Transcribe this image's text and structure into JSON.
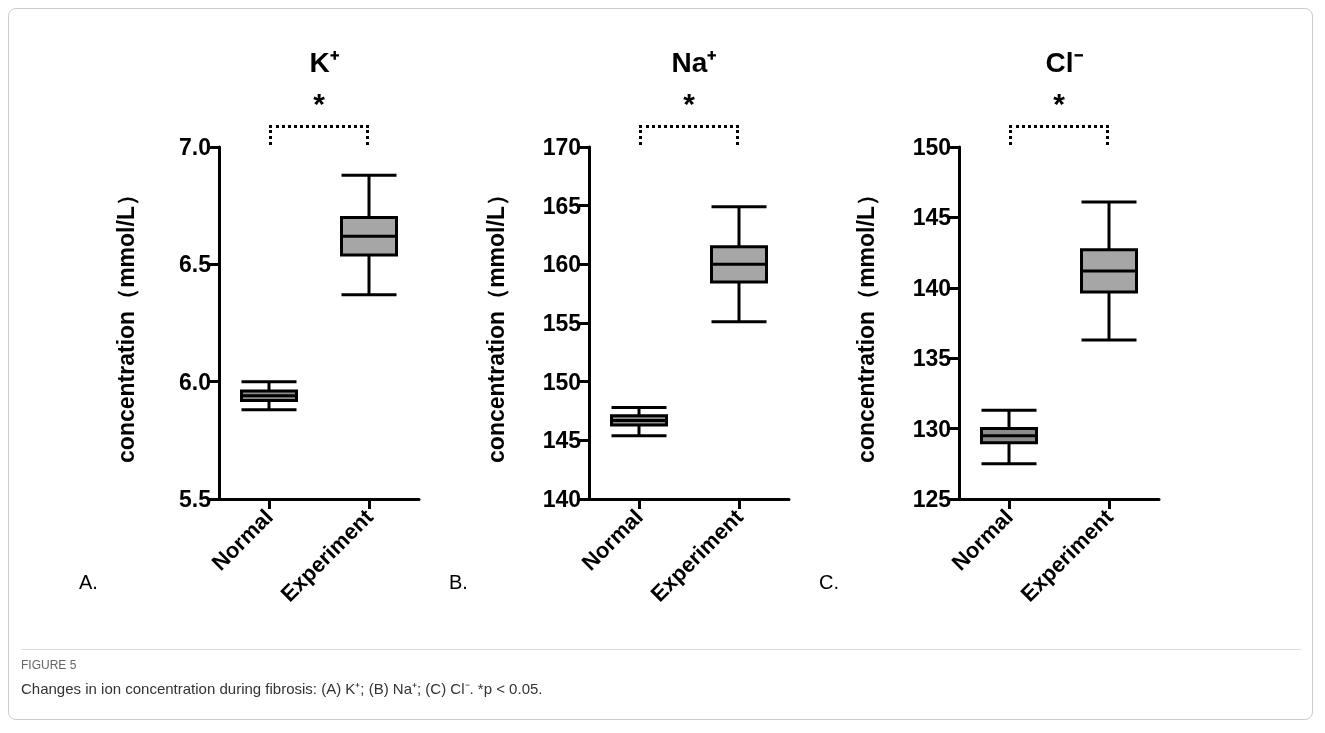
{
  "chart_data": [
    {
      "type": "box",
      "title": "K⁺",
      "ylabel": "concentration（mmol/L）",
      "categories": [
        "Normal",
        "Experiment"
      ],
      "colors": [
        "#8c8c8c",
        "#a6a6a6"
      ],
      "boxes": [
        {
          "low": 5.88,
          "q1": 5.92,
          "median": 5.94,
          "q3": 5.96,
          "high": 6.0
        },
        {
          "low": 6.37,
          "q1": 6.54,
          "median": 6.62,
          "q3": 6.7,
          "high": 6.88
        }
      ],
      "ylim": [
        5.5,
        7.0
      ],
      "yticks": [
        {
          "value": 5.5,
          "label": "5.5"
        },
        {
          "value": 6.0,
          "label": "6.0"
        },
        {
          "value": 6.5,
          "label": "6.5"
        },
        {
          "value": 7.0,
          "label": "7.0"
        }
      ],
      "grid": false,
      "annotations": [
        "*",
        "A.",
        "FIGURE 5",
        "Changes in ion concentration during fibrosis: (A) K⁺; (B) Na⁺; (C) Cl⁻. *p < 0.05."
      ]
    },
    {
      "type": "box",
      "title": "Na⁺",
      "ylabel": "concentration（mmol/L）",
      "categories": [
        "Normal",
        "Experiment"
      ],
      "colors": [
        "#8c8c8c",
        "#a6a6a6"
      ],
      "boxes": [
        {
          "low": 145.4,
          "q1": 146.3,
          "median": 146.7,
          "q3": 147.1,
          "high": 147.8
        },
        {
          "low": 155.1,
          "q1": 158.5,
          "median": 160.0,
          "q3": 161.5,
          "high": 164.9
        }
      ],
      "ylim": [
        140,
        170
      ],
      "yticks": [
        140,
        145,
        150,
        155,
        160,
        165,
        170
      ],
      "grid": false,
      "annotations": [
        "*",
        "B."
      ]
    },
    {
      "type": "box",
      "title": "Cl⁻",
      "ylabel": "concentration（mmol/L）",
      "categories": [
        "Normal",
        "Experiment"
      ],
      "colors": [
        "#8c8c8c",
        "#a6a6a6"
      ],
      "boxes": [
        {
          "low": 127.5,
          "q1": 129.0,
          "median": 129.5,
          "q3": 130.0,
          "high": 131.3
        },
        {
          "low": 136.3,
          "q1": 139.7,
          "median": 141.2,
          "q3": 142.7,
          "high": 146.1
        }
      ],
      "ylim": [
        125,
        150
      ],
      "yticks": [
        125,
        130,
        135,
        140,
        145,
        150
      ],
      "grid": false,
      "annotations": [
        "*",
        "C."
      ]
    }
  ]
}
